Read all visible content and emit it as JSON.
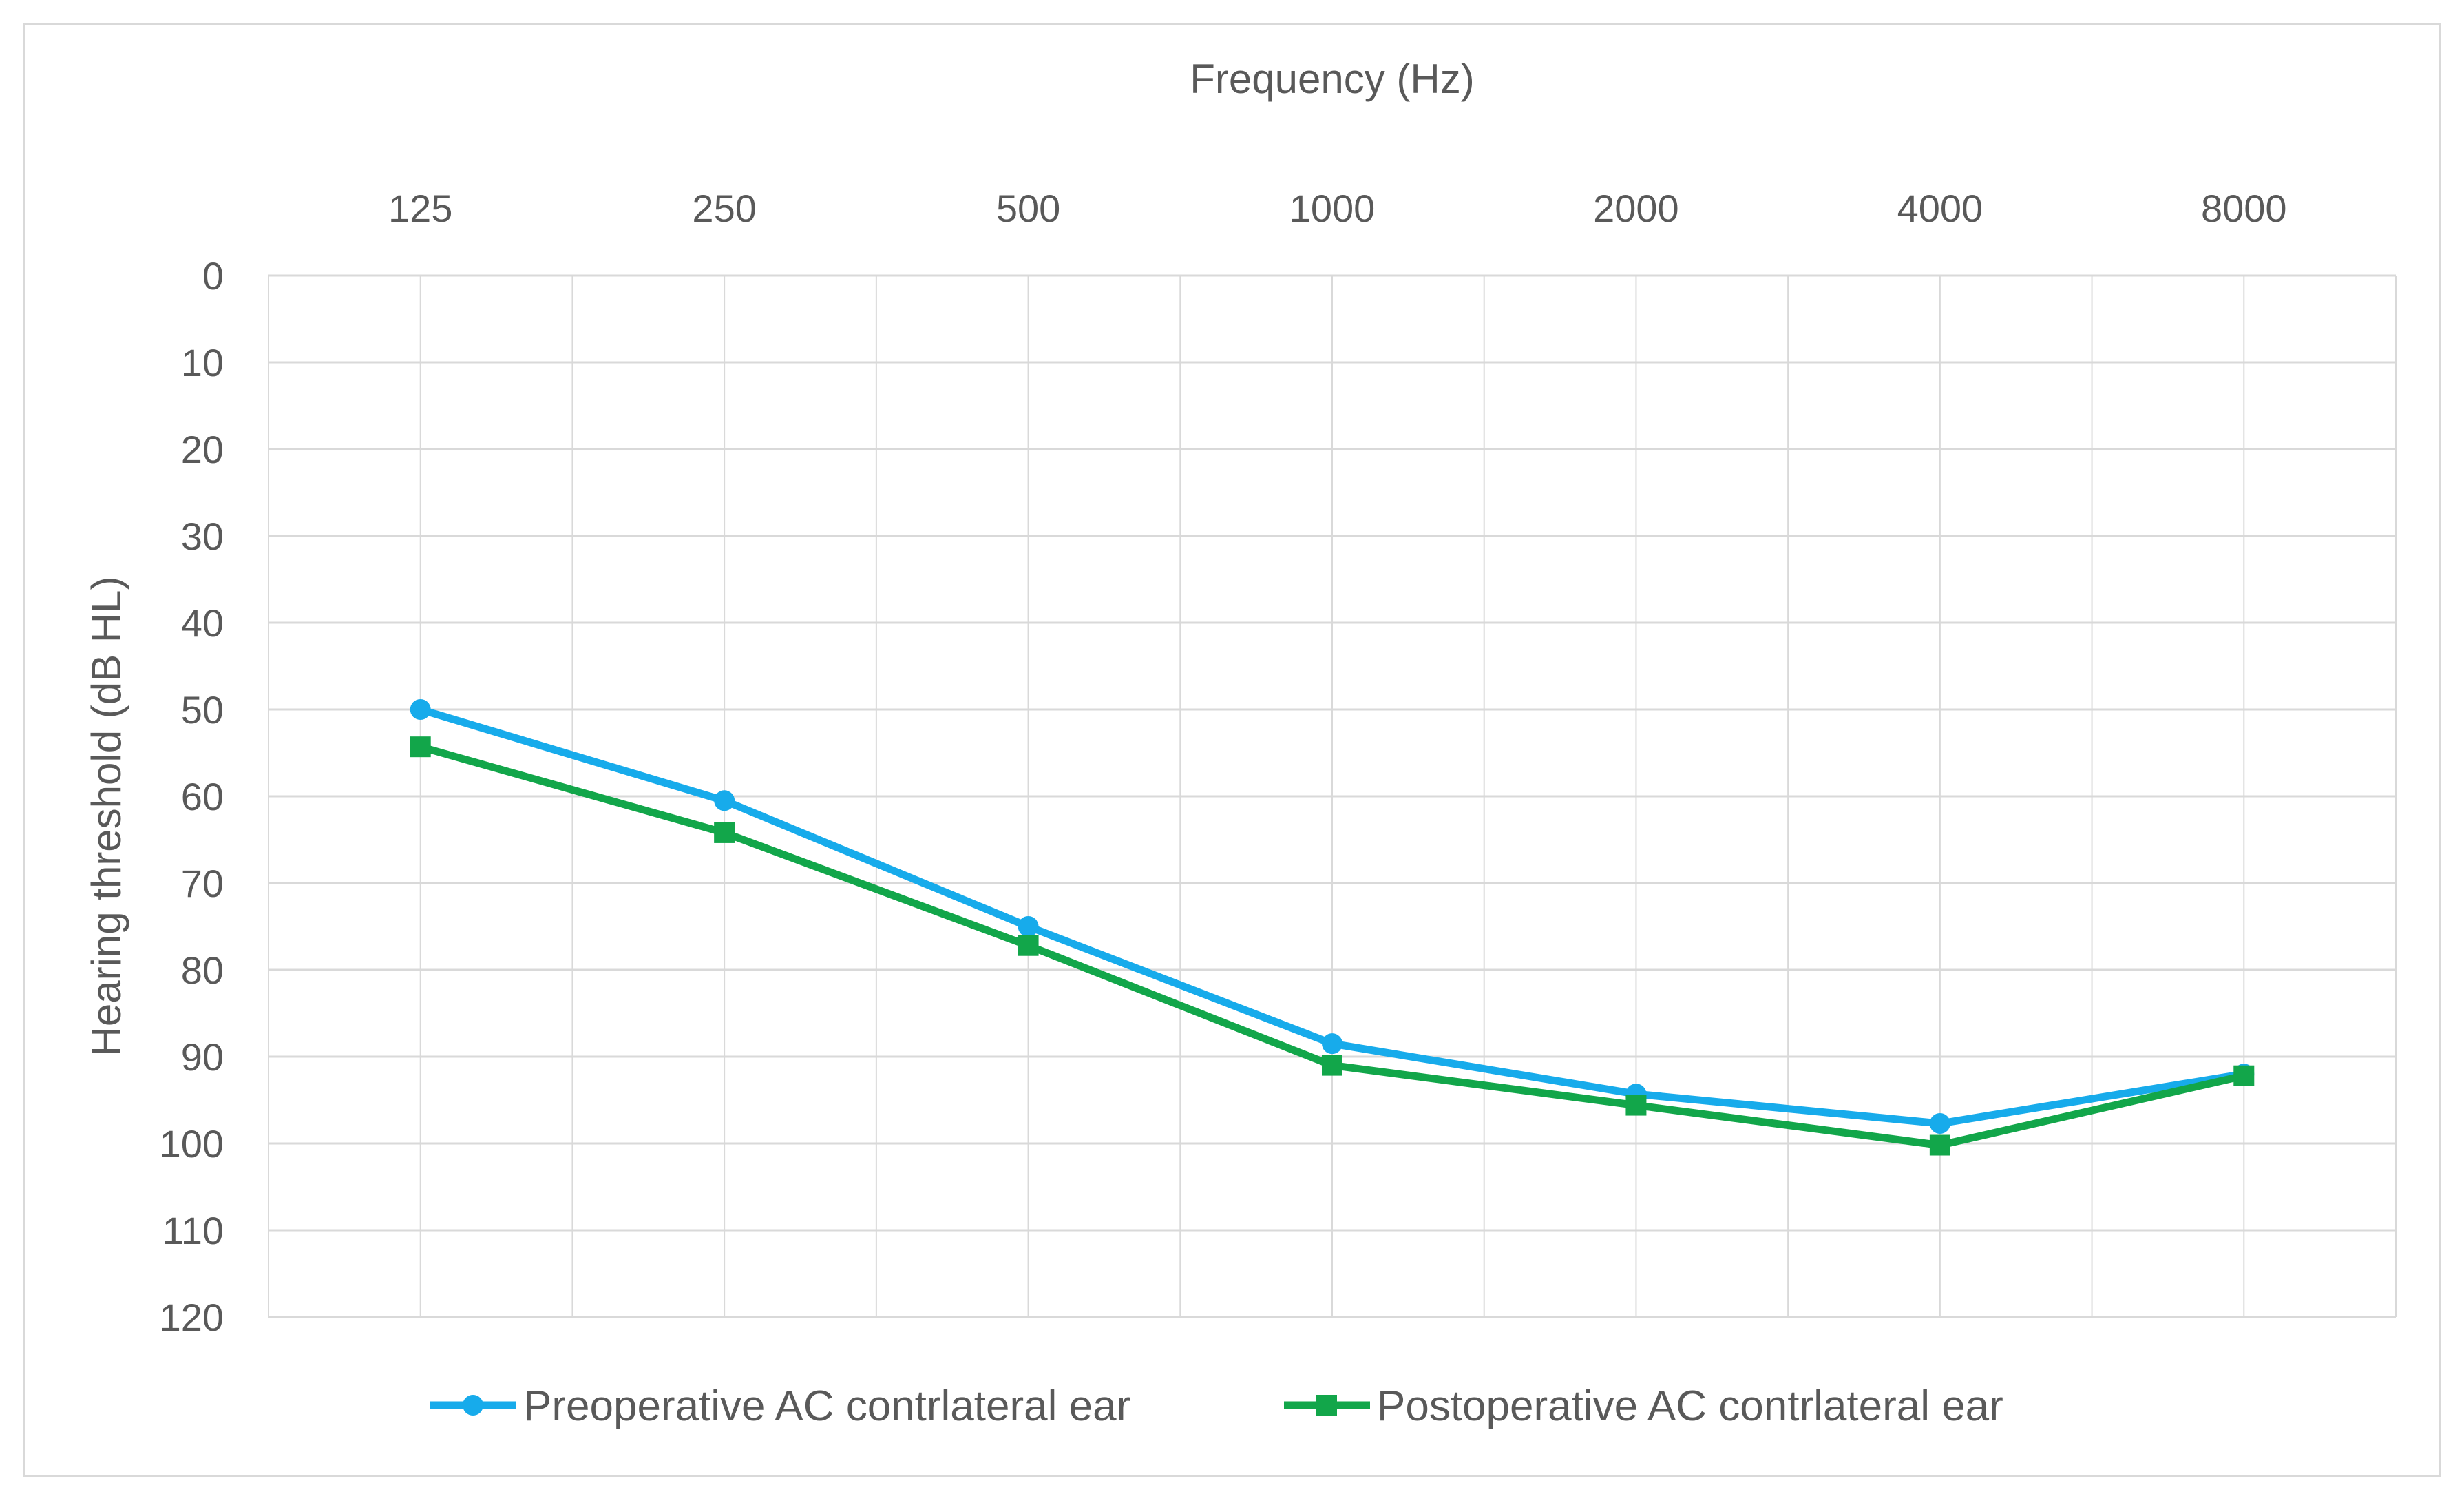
{
  "chart_data": {
    "type": "line",
    "title": "",
    "xlabel": "Frequency (Hz)",
    "ylabel": "Hearing threshold (dB HL)",
    "x_axis_position": "top",
    "y_axis_inverted": true,
    "categories": [
      "125",
      "250",
      "500",
      "1000",
      "2000",
      "4000",
      "8000"
    ],
    "ylim": [
      0,
      120
    ],
    "yticks": [
      0,
      10,
      20,
      30,
      40,
      50,
      60,
      70,
      80,
      90,
      100,
      110,
      120
    ],
    "grid": true,
    "legend_position": "bottom",
    "series": [
      {
        "name": "Preoperative AC contrlateral ear",
        "color": "#17ABEB",
        "marker": "circle",
        "values": [
          50,
          60.5,
          75,
          88.5,
          94.3,
          97.7,
          92
        ]
      },
      {
        "name": "Postoperative AC contrlateral ear",
        "color": "#12A64A",
        "marker": "square",
        "values": [
          54.3,
          64.2,
          77.2,
          91,
          95.6,
          100.2,
          92.2
        ]
      }
    ]
  }
}
